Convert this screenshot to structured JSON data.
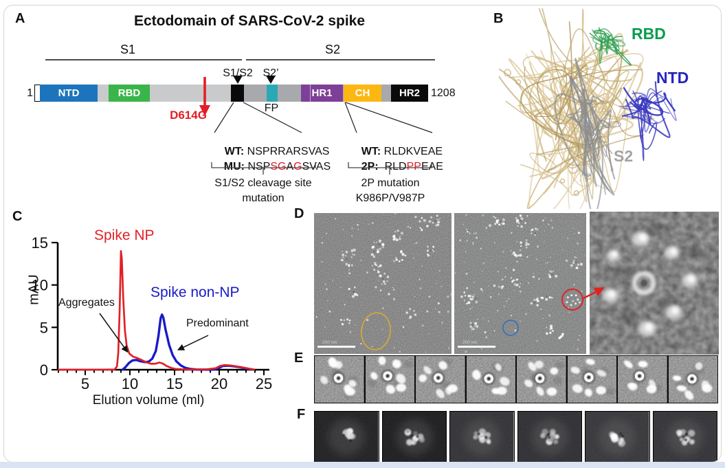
{
  "page": {
    "background": "#ffffff",
    "bottom_strip_color": "#d9e4f2",
    "card_border_color": "#d4d4d4"
  },
  "panel_a": {
    "label": "A",
    "title": "Ectodomain of SARS-CoV-2 spike",
    "s1_label": "S1",
    "s2_label": "S2",
    "s1s2_site_label": "S1/S2",
    "s2prime_site_label": "S2’",
    "residue_start": "1",
    "residue_end": "1208",
    "fp_label": "FP",
    "d614g_label": "D614G",
    "red_color": "#e31e26",
    "domains": [
      {
        "label": "NTD",
        "color": "#1c75bc"
      },
      {
        "label": "RBD",
        "color": "#3ab54a"
      },
      {
        "label": "HR1",
        "color": "#7d3f98"
      },
      {
        "label": "CH",
        "color": "#fdb713"
      },
      {
        "label": "HR2",
        "color": "#0a0a0a"
      }
    ],
    "cleavage": {
      "wt_label": "WT:",
      "wt_seq": "NSPRRARSVAS",
      "mu_label": "MU:",
      "mu_parts": [
        {
          "t": "NSP",
          "red": false
        },
        {
          "t": "S",
          "red": true
        },
        {
          "t": "G",
          "red": true
        },
        {
          "t": "A",
          "red": false
        },
        {
          "t": "G",
          "red": true
        },
        {
          "t": "SVAS",
          "red": false
        }
      ],
      "caption_line1": "S1/S2 cleavage site",
      "caption_line2": "mutation"
    },
    "twop": {
      "wt_label": "WT:",
      "wt_seq": "RLDKVEAE",
      "p_label": "2P:",
      "p_parts": [
        {
          "t": "RLD",
          "red": false
        },
        {
          "t": "PP",
          "red": true
        },
        {
          "t": "EAE",
          "red": false
        }
      ],
      "caption_line1": "2P mutation",
      "caption_line2": "K986P/V987P"
    }
  },
  "panel_b": {
    "label": "B",
    "rbd_label": "RBD",
    "rbd_color": "#089e4c",
    "ntd_label": "NTD",
    "ntd_color": "#2525bd",
    "s2_label": "S2",
    "s2_color": "#a3a3a3"
  },
  "panel_c": {
    "label": "C"
  },
  "chart_data": {
    "type": "line",
    "title": "",
    "xlabel": "Elution volume (ml)",
    "ylabel": "mAU",
    "xlim": [
      2,
      25.5
    ],
    "ylim": [
      0,
      15
    ],
    "xticks": [
      5,
      10,
      15,
      20,
      25
    ],
    "yticks": [
      0,
      5,
      10,
      15
    ],
    "minor_x_step": 1,
    "grid": false,
    "legend_position": "inline-labels",
    "series": [
      {
        "name": "Spike NP",
        "color": "#e02127",
        "points": [
          [
            2,
            0.02
          ],
          [
            5,
            0.02
          ],
          [
            7,
            0.02
          ],
          [
            8.3,
            0.03
          ],
          [
            8.55,
            0.4
          ],
          [
            8.7,
            2
          ],
          [
            8.85,
            7
          ],
          [
            9.0,
            14
          ],
          [
            9.1,
            13
          ],
          [
            9.25,
            8.5
          ],
          [
            9.45,
            4.6
          ],
          [
            9.65,
            2.8
          ],
          [
            9.95,
            1.9
          ],
          [
            10.35,
            1.55
          ],
          [
            10.9,
            1.35
          ],
          [
            11.4,
            1.1
          ],
          [
            11.9,
            0.85
          ],
          [
            12.4,
            0.7
          ],
          [
            12.9,
            0.72
          ],
          [
            13.3,
            0.85
          ],
          [
            13.7,
            0.72
          ],
          [
            14.1,
            0.45
          ],
          [
            14.6,
            0.22
          ],
          [
            15.1,
            0.1
          ],
          [
            15.8,
            0.05
          ],
          [
            17.0,
            0.02
          ],
          [
            18.6,
            0.05
          ],
          [
            19.6,
            0.18
          ],
          [
            20.1,
            0.45
          ],
          [
            20.6,
            0.55
          ],
          [
            21.3,
            0.5
          ],
          [
            22.1,
            0.36
          ],
          [
            22.9,
            0.22
          ],
          [
            23.5,
            0.1
          ],
          [
            23.9,
            0.03
          ]
        ]
      },
      {
        "name": "Spike non-NP",
        "color": "#1a1ac8",
        "points": [
          [
            9.2,
            0.02
          ],
          [
            9.5,
            0.3
          ],
          [
            9.9,
            0.8
          ],
          [
            10.3,
            1.1
          ],
          [
            10.7,
            1.15
          ],
          [
            11.2,
            1.0
          ],
          [
            11.7,
            0.9
          ],
          [
            12.1,
            0.95
          ],
          [
            12.5,
            1.3
          ],
          [
            12.9,
            2.2
          ],
          [
            13.2,
            4.0
          ],
          [
            13.45,
            6.1
          ],
          [
            13.6,
            6.5
          ],
          [
            13.75,
            6.1
          ],
          [
            14.0,
            4.7
          ],
          [
            14.4,
            2.9
          ],
          [
            14.8,
            1.7
          ],
          [
            15.2,
            1.0
          ],
          [
            15.7,
            0.5
          ],
          [
            16.2,
            0.22
          ],
          [
            16.8,
            0.08
          ],
          [
            17.5,
            0.02
          ],
          [
            19.2,
            0.02
          ],
          [
            19.9,
            0.18
          ],
          [
            20.4,
            0.45
          ],
          [
            21.0,
            0.48
          ],
          [
            21.7,
            0.4
          ],
          [
            22.5,
            0.27
          ],
          [
            23.1,
            0.13
          ],
          [
            23.6,
            0.04
          ]
        ]
      }
    ],
    "annotations": [
      {
        "text": "Aggregates",
        "points_to": [
          9.8,
          2.0
        ]
      },
      {
        "text": "Predominant",
        "points_to": [
          15.3,
          2.3
        ]
      }
    ]
  },
  "panel_d": {
    "label": "D",
    "scale_bar_text": "200 nm",
    "annotations": {
      "aggregate_ellipse_color": "#d7a83a",
      "single_particle_circle_color": "#3f6fb8",
      "rosette_circle_color": "#e02222",
      "zoom_arrow_color": "#e02222"
    }
  },
  "panel_e": {
    "label": "E",
    "tiles": 8
  },
  "panel_f": {
    "label": "F",
    "tiles": 6
  }
}
